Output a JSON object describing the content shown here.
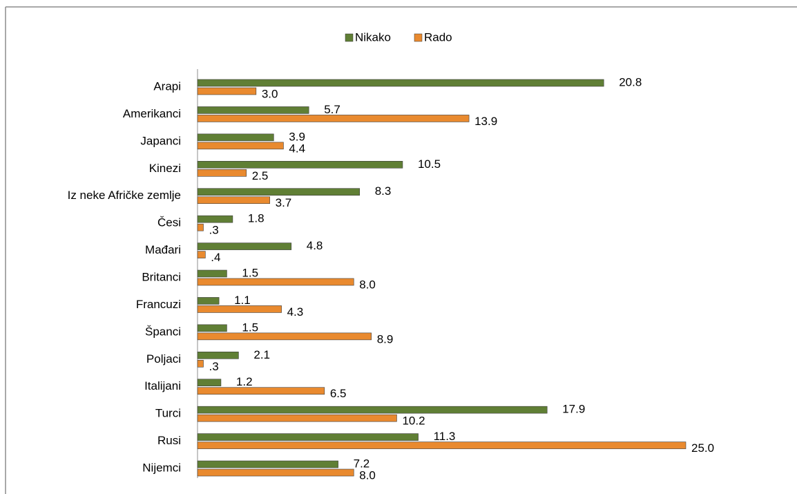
{
  "chart_data": {
    "type": "hbar",
    "categories": [
      "Arapi",
      "Amerikanci",
      "Japanci",
      "Kinezi",
      "Iz neke Afričke zemlje",
      "Česi",
      "Mađari",
      "Britanci",
      "Francuzi",
      "Španci",
      "Poljaci",
      "Italijani",
      "Turci",
      "Rusi",
      "Nijemci"
    ],
    "series": [
      {
        "name": "Nikako",
        "color": "#607f35",
        "values": [
          20.8,
          5.7,
          3.9,
          10.5,
          8.3,
          1.8,
          4.8,
          1.5,
          1.1,
          1.5,
          2.1,
          1.2,
          17.9,
          11.3,
          7.2
        ],
        "value_labels": [
          "20.8",
          "5.7",
          "3.9",
          "10.5",
          "8.3",
          "1.8",
          "4.8",
          "1.5",
          "1.1",
          "1.5",
          "2.1",
          "1.2",
          "17.9",
          "11.3",
          "7.2"
        ]
      },
      {
        "name": "Rado",
        "color": "#e98a2f",
        "values": [
          3.0,
          13.9,
          4.4,
          2.5,
          3.7,
          0.3,
          0.4,
          8.0,
          4.3,
          8.9,
          0.3,
          6.5,
          10.2,
          25.0,
          8.0
        ],
        "value_labels": [
          "3.0",
          "13.9",
          "4.4",
          "2.5",
          "3.7",
          ".3",
          ".4",
          "8.0",
          "4.3",
          "8.9",
          ".3",
          "6.5",
          "10.2",
          "25.0",
          "8.0"
        ]
      }
    ],
    "xlim": [
      0,
      25
    ],
    "legend": "top"
  }
}
